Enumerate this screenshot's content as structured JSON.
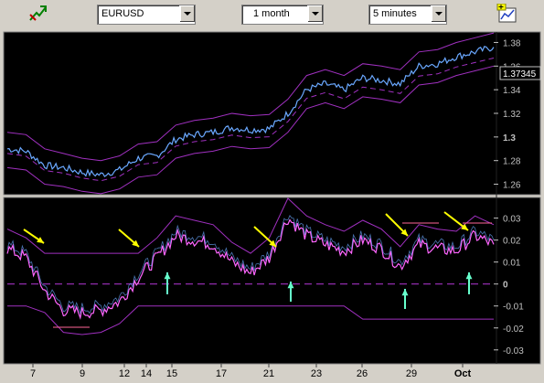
{
  "toolbar": {
    "symbol": {
      "value": "EURUSD"
    },
    "range": {
      "value": "1 month"
    },
    "interval": {
      "value": "5 minutes"
    },
    "left_icon": "pointer-tool-icon",
    "right_icon": "chart-settings-icon"
  },
  "price_panel": {
    "last_price_label": "1.37345",
    "y_ticks": [
      "1.38",
      "1.36",
      "1.34",
      "1.32",
      "1.3",
      "1.28",
      "1.26"
    ]
  },
  "indicator_panel": {
    "y_ticks": [
      "0.03",
      "0.02",
      "0.01",
      "0",
      "-0.01",
      "-0.02",
      "-0.03"
    ]
  },
  "x_axis": {
    "ticks": [
      "7",
      "9",
      "12",
      "14",
      "15",
      "17",
      "21",
      "23",
      "26",
      "29",
      "Oct"
    ]
  },
  "colors": {
    "price": "#6aa8ff",
    "band": "#a030c0",
    "indicator": "#ff66ff",
    "arrow_down": "#ffff00",
    "arrow_up": "#66ffcc",
    "pink_line": "#ff6699"
  },
  "chart_data": [
    {
      "type": "line",
      "ylim": [
        1.255,
        1.385
      ],
      "series": [
        {
          "values": [
            1.29,
            1.288,
            1.276,
            1.274,
            1.27,
            1.268,
            1.272,
            1.282,
            1.284,
            1.298,
            1.302,
            1.304,
            1.308,
            1.306,
            1.307,
            1.32,
            1.34,
            1.345,
            1.34,
            1.35,
            1.348,
            1.345,
            1.36,
            1.362,
            1.368,
            1.372,
            1.376
          ]
        }
      ]
    },
    {
      "type": "line",
      "ylim": [
        -0.033,
        0.034
      ],
      "series": [
        {
          "values": [
            0.016,
            0.012,
            -0.003,
            -0.012,
            -0.013,
            -0.012,
            -0.008,
            0.003,
            0.012,
            0.022,
            0.02,
            0.018,
            0.01,
            0.005,
            0.012,
            0.03,
            0.022,
            0.018,
            0.015,
            0.02,
            0.016,
            0.008,
            0.018,
            0.016,
            0.015,
            0.022,
            0.018
          ]
        }
      ]
    }
  ]
}
